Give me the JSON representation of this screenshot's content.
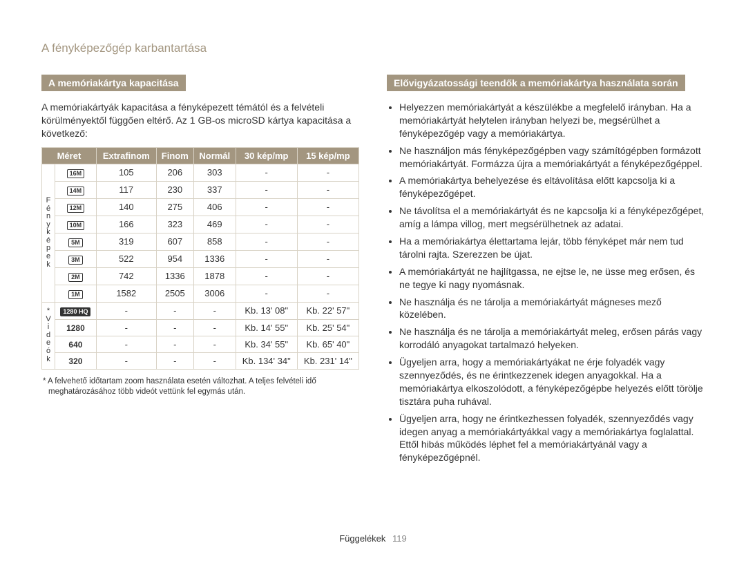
{
  "colors": {
    "accent": "#a39680",
    "text": "#333333",
    "border": "#d8d2c5",
    "bg": "#ffffff"
  },
  "typography": {
    "base_font": "Arial, Helvetica, sans-serif",
    "title_pt": 17,
    "body_pt": 14,
    "table_pt": 13,
    "footnote_pt": 11.5
  },
  "page_title": "A fényképezőgép karbantartása",
  "footer_label": "Függelékek",
  "page_number": "119",
  "left": {
    "heading": "A memóriakártya kapacitása",
    "intro": "A memóriakártyák kapacitása a fényképezett témától és a felvételi körülményektől függően eltérő. Az 1 GB-os microSD kártya kapacitása a következő:",
    "headers": [
      "Méret",
      "Extrafinom",
      "Finom",
      "Normál",
      "30 kép/mp",
      "15 kép/mp"
    ],
    "row_group_labels": {
      "photos": "F é n y k é p e k",
      "videos": "* V i d e ó k"
    },
    "photo_rows": [
      {
        "size_label": "16M",
        "icon_style": "box",
        "cells": [
          "105",
          "206",
          "303",
          "-",
          "-"
        ]
      },
      {
        "size_label": "14M",
        "icon_style": "box-wide",
        "cells": [
          "117",
          "230",
          "337",
          "-",
          "-"
        ]
      },
      {
        "size_label": "12M",
        "icon_style": "box-outline",
        "cells": [
          "140",
          "275",
          "406",
          "-",
          "-"
        ]
      },
      {
        "size_label": "10M",
        "icon_style": "box",
        "cells": [
          "166",
          "323",
          "469",
          "-",
          "-"
        ]
      },
      {
        "size_label": "5M",
        "icon_style": "box",
        "cells": [
          "319",
          "607",
          "858",
          "-",
          "-"
        ]
      },
      {
        "size_label": "3M",
        "icon_style": "box",
        "cells": [
          "522",
          "954",
          "1336",
          "-",
          "-"
        ]
      },
      {
        "size_label": "2M",
        "icon_style": "box-outline",
        "cells": [
          "742",
          "1336",
          "1878",
          "-",
          "-"
        ]
      },
      {
        "size_label": "1M",
        "icon_style": "box",
        "cells": [
          "1582",
          "2505",
          "3006",
          "-",
          "-"
        ]
      }
    ],
    "video_rows": [
      {
        "size_label": "1280 HQ",
        "icon_style": "filled",
        "cells": [
          "-",
          "-",
          "-",
          "Kb. 13' 08\"",
          "Kb. 22' 57\""
        ]
      },
      {
        "size_label": "1280",
        "icon_style": "plain",
        "cells": [
          "-",
          "-",
          "-",
          "Kb. 14' 55\"",
          "Kb. 25' 54\""
        ]
      },
      {
        "size_label": "640",
        "icon_style": "plain",
        "cells": [
          "-",
          "-",
          "-",
          "Kb. 34' 55\"",
          "Kb. 65' 40\""
        ]
      },
      {
        "size_label": "320",
        "icon_style": "plain",
        "cells": [
          "-",
          "-",
          "-",
          "Kb. 134' 34\"",
          "Kb. 231' 14\""
        ]
      }
    ],
    "footnote": "* A felvehető időtartam zoom használata esetén változhat. A teljes felvételi idő meghatározásához több videót vettünk fel egymás után."
  },
  "right": {
    "heading": "Elővigyázatossági teendők a memóriakártya használata során",
    "items": [
      "Helyezzen memóriakártyát a készülékbe a megfelelő irányban. Ha a memóriakártyát helytelen irányban helyezi be, megsérülhet a fényképezőgép vagy a memóriakártya.",
      "Ne használjon más fényképezőgépben vagy számítógépben formázott memóriakártyát. Formázza újra a memóriakártyát a fényképezőgéppel.",
      "A memóriakártya behelyezése és eltávolítása előtt kapcsolja ki a fényképezőgépet.",
      "Ne távolítsa el a memóriakártyát és ne kapcsolja ki a fényképezőgépet, amíg a lámpa villog, mert megsérülhetnek az adatai.",
      "Ha a memóriakártya élettartama lejár, több fényképet már nem tud tárolni rajta. Szerezzen be újat.",
      "A memóriakártyát ne hajlítgassa, ne ejtse le, ne üsse meg erősen, és ne tegye ki nagy nyomásnak.",
      "Ne használja és ne tárolja a memóriakártyát mágneses mező közelében.",
      "Ne használja és ne tárolja a memóriakártyát meleg, erősen párás vagy korrodáló anyagokat tartalmazó helyeken.",
      "Ügyeljen arra, hogy a memóriakártyákat ne érje folyadék vagy szennyeződés, és ne érintkezzenek idegen anyagokkal. Ha a memóriakártya elkoszolódott, a fényképezőgépbe helyezés előtt törölje tisztára puha ruhával.",
      "Ügyeljen arra, hogy ne érintkezhessen folyadék, szennyeződés vagy idegen anyag a memóriakártyákkal vagy a memóriakártya foglalattal. Ettől hibás működés léphet fel a memóriakártyánál vagy a fényképezőgépnél."
    ]
  }
}
